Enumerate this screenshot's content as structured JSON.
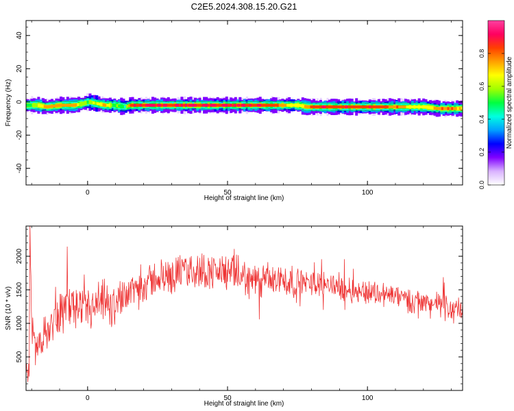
{
  "title": "C2E5.2024.308.15.20.G21",
  "spectrogram": {
    "xlabel": "Height of straight line (km)",
    "ylabel": "Frequency (Hz)",
    "xlim": [
      -22,
      134
    ],
    "ylim": [
      -50,
      49
    ],
    "xticks": [
      0,
      50,
      100
    ],
    "yticks": [
      -40,
      -20,
      0,
      20,
      40
    ],
    "colorbar": {
      "label": "Normalized spectral amplitude",
      "range": [
        0,
        1
      ],
      "ticks": [
        "0.0",
        "0.2",
        "0.4",
        "0.6",
        "0.8"
      ],
      "colors": [
        "#ffffff",
        "#d9b3ff",
        "#8000ff",
        "#0000ff",
        "#00a0ff",
        "#00ffe0",
        "#00ff40",
        "#a0ff00",
        "#ffff00",
        "#ffa000",
        "#ff4000",
        "#ff0060",
        "#ff40a0"
      ]
    }
  },
  "chart_data": [
    {
      "type": "heatmap",
      "title": "C2E5.2024.308.15.20.G21",
      "xlabel": "Height of straight line (km)",
      "ylabel": "Frequency (Hz)",
      "xlim": [
        -22,
        134
      ],
      "ylim": [
        -50,
        49
      ],
      "colorbar_label": "Normalized spectral amplitude",
      "ridge": {
        "x": [
          -22,
          -18,
          -15,
          -10,
          -5,
          -2,
          0,
          3,
          6,
          9,
          13,
          15,
          20,
          30,
          40,
          50,
          60,
          65,
          70,
          75,
          78,
          80,
          85,
          90,
          95,
          100,
          105,
          110,
          115,
          120,
          125,
          128,
          131,
          134
        ],
        "frequency_hz": [
          -2,
          -2,
          -3,
          -2,
          -2,
          -1,
          0,
          -1,
          -2,
          -2,
          -3,
          -2,
          -2,
          -2,
          -2,
          -2,
          -2,
          -2,
          -2,
          -2,
          -3,
          -3,
          -3,
          -3,
          -3,
          -3,
          -3,
          -3,
          -3,
          -3,
          -4,
          -4,
          -4,
          -4
        ],
        "peak_amplitude": [
          0.5,
          0.7,
          0.8,
          0.8,
          0.8,
          0.6,
          0.6,
          0.7,
          0.75,
          0.6,
          0.5,
          0.9,
          0.95,
          0.95,
          0.95,
          0.95,
          0.95,
          0.9,
          0.75,
          0.7,
          0.8,
          0.9,
          0.9,
          0.9,
          0.9,
          0.9,
          0.9,
          0.85,
          0.7,
          0.7,
          0.8,
          0.85,
          0.8,
          0.7
        ]
      }
    },
    {
      "type": "line",
      "xlabel": "Height of straight line (km)",
      "ylabel": "SNR (10 * v/v)",
      "xlim": [
        -22,
        134
      ],
      "ylim": [
        0,
        2450
      ],
      "xticks": [
        0,
        50,
        100
      ],
      "yticks": [
        500,
        1000,
        1500,
        2000
      ],
      "series": [
        {
          "color": "#ee3333",
          "x": [
            -22,
            -21,
            -20.5,
            -20,
            -19,
            -18,
            -16,
            -14,
            -12,
            -10,
            -8,
            -6,
            -5,
            -3,
            0,
            2,
            4,
            6,
            8,
            10,
            13,
            16,
            20,
            25,
            30,
            35,
            40,
            45,
            50,
            55,
            60,
            65,
            68,
            70,
            75,
            80,
            85,
            90,
            95,
            100,
            105,
            110,
            115,
            120,
            125,
            130,
            134
          ],
          "y": [
            100,
            400,
            2420,
            900,
            700,
            650,
            800,
            900,
            1050,
            1150,
            1250,
            1250,
            1300,
            1100,
            1200,
            1200,
            1250,
            1300,
            1200,
            1300,
            1450,
            1500,
            1580,
            1680,
            1720,
            1780,
            1790,
            1770,
            1760,
            1700,
            1620,
            1620,
            1620,
            1650,
            1600,
            1600,
            1600,
            1540,
            1480,
            1470,
            1450,
            1400,
            1350,
            1310,
            1280,
            1220,
            1200
          ]
        }
      ]
    }
  ]
}
